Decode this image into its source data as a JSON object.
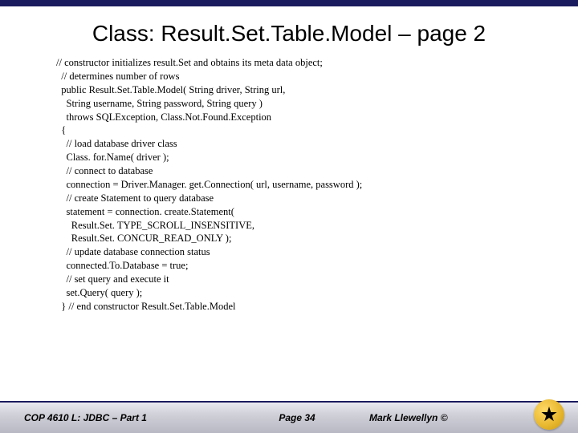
{
  "title": "Class:  Result.Set.Table.Model – page 2",
  "code": {
    "line01": "// constructor initializes result.Set and obtains its meta data object;",
    "line02": "  // determines number of rows",
    "line03": "  public Result.Set.Table.Model( String driver, String url,",
    "line04": "    String username, String password, String query )",
    "line05": "    throws SQLException, Class.Not.Found.Exception",
    "line06": "  {",
    "line07": "    // load database driver class",
    "line08": "    Class. for.Name( driver );",
    "line09": "",
    "line10": "    // connect to database",
    "line11": "    connection = Driver.Manager. get.Connection( url, username, password );",
    "line12": "",
    "line13": "    // create Statement to query database",
    "line14": "    statement = connection. create.Statement(",
    "line15": "      Result.Set. TYPE_SCROLL_INSENSITIVE,",
    "line16": "      Result.Set. CONCUR_READ_ONLY );",
    "line17": "",
    "line18": "    // update database connection status",
    "line19": "    connected.To.Database = true;",
    "line20": "",
    "line21": "    // set query and execute it",
    "line22": "    set.Query( query );",
    "line23": "  } // end constructor Result.Set.Table.Model"
  },
  "footer": {
    "left": "COP 4610 L: JDBC – Part 1",
    "center": "Page 34",
    "right": "Mark Llewellyn ©"
  },
  "colors": {
    "topbar": "#1a1a5e",
    "title": "#000000",
    "text": "#000000",
    "footer_border": "#1a1a5e",
    "logo_gold": "#e8b830"
  },
  "typography": {
    "title_fontsize": 28,
    "code_fontsize": 12.5,
    "footer_fontsize": 12,
    "title_family": "Arial",
    "code_family": "Times New Roman",
    "footer_family": "Arial"
  }
}
